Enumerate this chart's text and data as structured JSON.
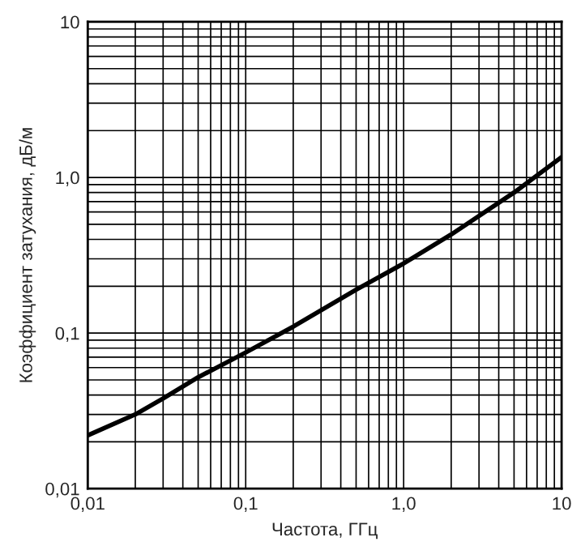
{
  "chart_data": {
    "type": "line",
    "xlabel": "Частота, ГГц",
    "ylabel": "Коэффициент затухания, дБ/м",
    "log": "xy",
    "grid": true,
    "marker": "none",
    "line_style": "solid",
    "xlim": [
      0.01,
      10
    ],
    "ylim": [
      0.01,
      10
    ],
    "xticks": [
      {
        "value": 0.01,
        "label": "0,01"
      },
      {
        "value": 0.1,
        "label": "0,1"
      },
      {
        "value": 1,
        "label": "1,0"
      },
      10
    ],
    "yticks": [
      {
        "value": 0.01,
        "label": "0,01"
      },
      {
        "value": 0.1,
        "label": "0,1"
      },
      {
        "value": 1,
        "label": "1,0"
      },
      10
    ],
    "x": [
      0.01,
      0.02,
      0.03,
      0.05,
      0.1,
      0.2,
      0.5,
      1,
      2,
      5,
      10
    ],
    "series": [
      {
        "color": "#000000",
        "values": [
          0.022,
          0.03,
          0.038,
          0.052,
          0.075,
          0.11,
          0.19,
          0.28,
          0.43,
          0.8,
          1.35
        ]
      }
    ]
  }
}
